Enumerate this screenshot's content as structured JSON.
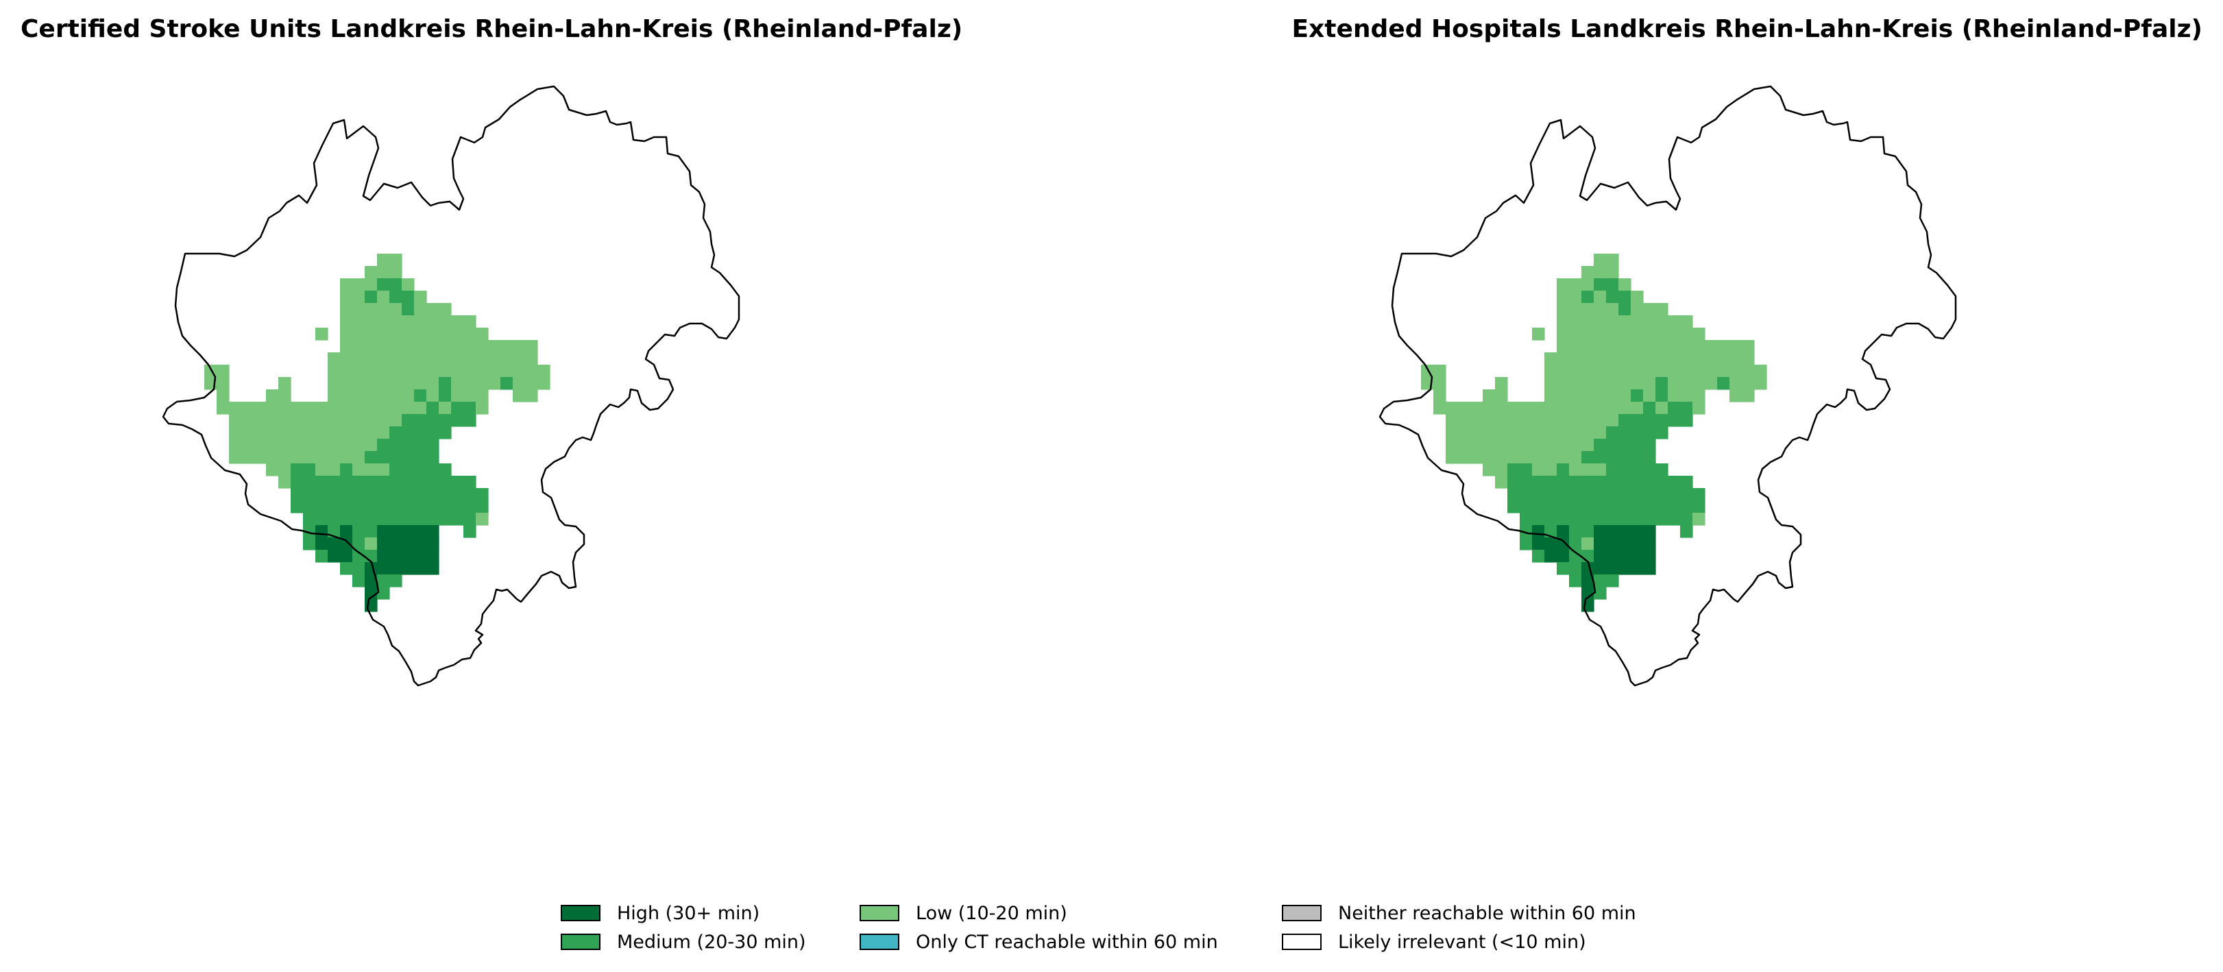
{
  "maps": [
    {
      "title": "Certified Stroke Units Landkreis Rhein-Lahn-Kreis (Rheinland-Pfalz)",
      "grid_fill": "fill1"
    },
    {
      "title": "Extended Hospitals Landkreis Rhein-Lahn-Kreis (Rheinland-Pfalz)",
      "grid_fill": "fill1"
    }
  ],
  "legend": [
    {
      "label": "High (30+ min)",
      "color": "#006d36",
      "key": "high"
    },
    {
      "label": "Medium (20-30 min)",
      "color": "#31a354",
      "key": "medium"
    },
    {
      "label": "Low (10-20 min)",
      "color": "#78c679",
      "key": "low"
    },
    {
      "label": "Only CT reachable within 60 min",
      "color": "#41b6c4",
      "key": "ct"
    },
    {
      "label": "Neither reachable within 60 min",
      "color": "#bdbdbd",
      "key": "neither"
    },
    {
      "label": "Likely irrelevant (<10 min)",
      "color": "#ffffff",
      "key": "irrelevant"
    }
  ]
}
